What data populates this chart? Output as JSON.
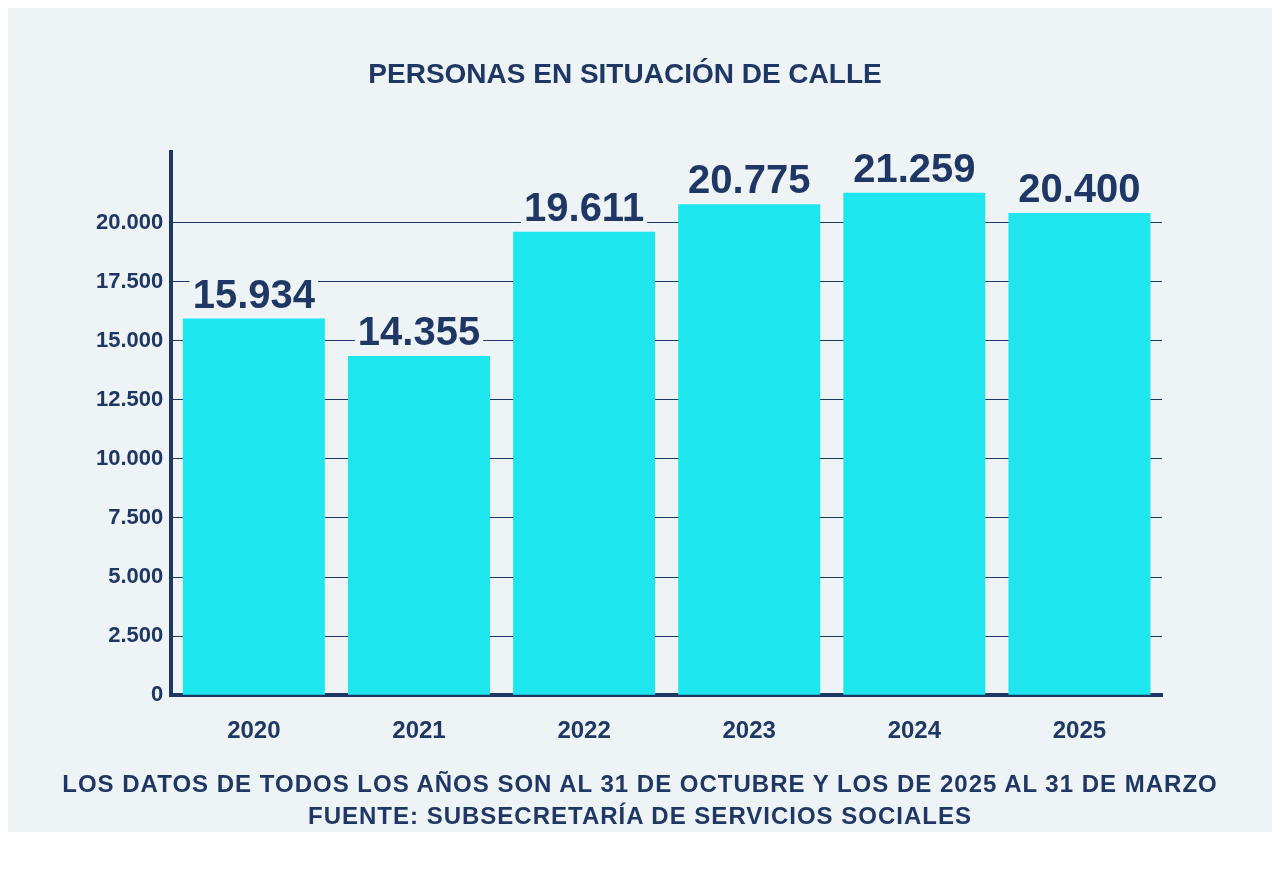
{
  "chart_data": {
    "type": "bar",
    "title": "PERSONAS EN SITUACIÓN DE CALLE",
    "categories": [
      "2020",
      "2021",
      "2022",
      "2023",
      "2024",
      "2025"
    ],
    "values": [
      15934,
      14355,
      19611,
      20775,
      21259,
      20400
    ],
    "value_labels": [
      "15.934",
      "14.355",
      "19.611",
      "20.775",
      "21.259",
      "20.400"
    ],
    "color": "#1ee6ee",
    "ylim": [
      0,
      23000
    ],
    "yticks": [
      {
        "value": 0,
        "label": "0"
      },
      {
        "value": 2500,
        "label": "2.500"
      },
      {
        "value": 5000,
        "label": "5.000"
      },
      {
        "value": 7500,
        "label": "7.500"
      },
      {
        "value": 10000,
        "label": "10.000"
      },
      {
        "value": 12500,
        "label": "12.500"
      },
      {
        "value": 15000,
        "label": "15.000"
      },
      {
        "value": 17500,
        "label": "17.500"
      },
      {
        "value": 20000,
        "label": "20.000"
      }
    ],
    "grid": "y",
    "annotations": [
      "LOS DATOS DE TODOS LOS AÑOS SON AL 31 DE OCTUBRE Y LOS DE 2025 AL 31 DE MARZO",
      "FUENTE: SUBSECRETARÍA DE SERVICIOS SOCIALES"
    ]
  }
}
